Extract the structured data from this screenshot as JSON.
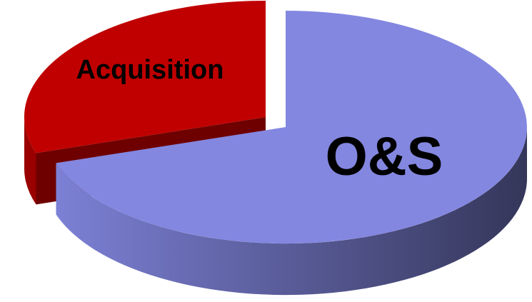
{
  "chart_data": {
    "type": "pie",
    "categories": [
      "Acquisition",
      "O&S"
    ],
    "values": [
      30,
      70
    ],
    "colors": [
      "#c00000",
      "#8387e0"
    ]
  }
}
